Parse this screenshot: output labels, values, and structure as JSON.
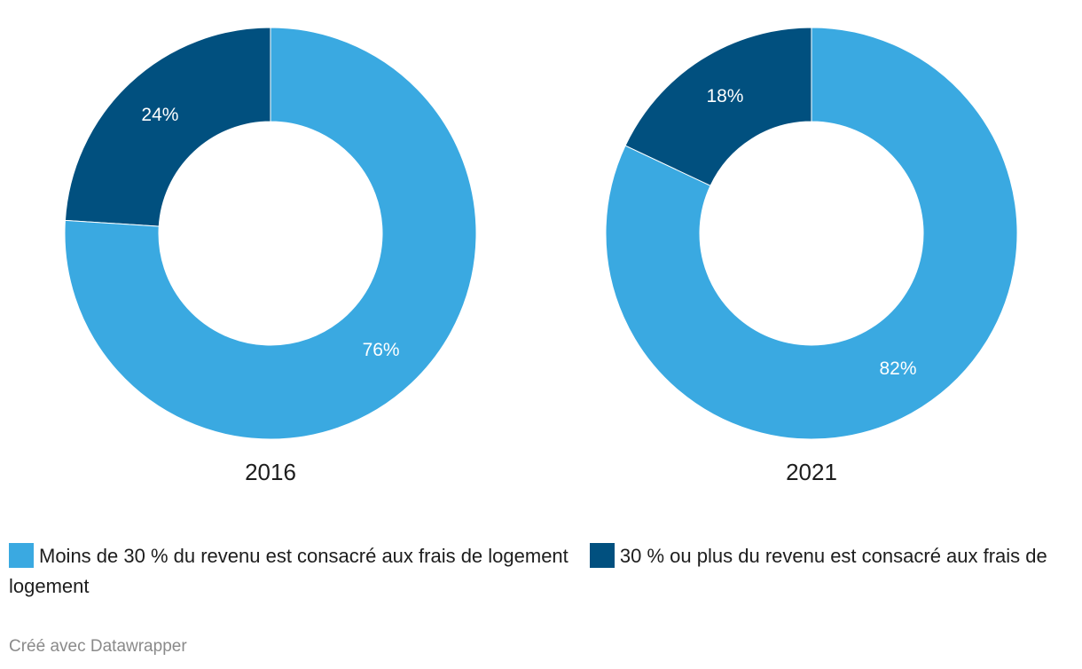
{
  "chart_data": [
    {
      "type": "pie",
      "title": "2016",
      "slices": [
        {
          "label": "30 % ou plus du revenu est consacré aux frais de logement",
          "value": 24,
          "display": "24%",
          "color": "#01507f"
        },
        {
          "label": "Moins de 30 % du revenu est consacré aux frais de logement",
          "value": 76,
          "display": "76%",
          "color": "#3aa9e1"
        }
      ]
    },
    {
      "type": "pie",
      "title": "2021",
      "slices": [
        {
          "label": "30 % ou plus du revenu est consacré aux frais de logement",
          "value": 18,
          "display": "18%",
          "color": "#01507f"
        },
        {
          "label": "Moins de 30 % du revenu est consacré aux frais de logement",
          "value": 82,
          "display": "82%",
          "color": "#3aa9e1"
        }
      ]
    }
  ],
  "legend": {
    "items": [
      {
        "label": "Moins de 30 % du revenu est consacré aux frais de logement",
        "color": "#3aa9e1"
      },
      {
        "label": "30 % ou plus du revenu est consacré aux frais de logement",
        "color": "#01507f"
      }
    ]
  },
  "footer": {
    "credit": "Créé avec Datawrapper"
  }
}
